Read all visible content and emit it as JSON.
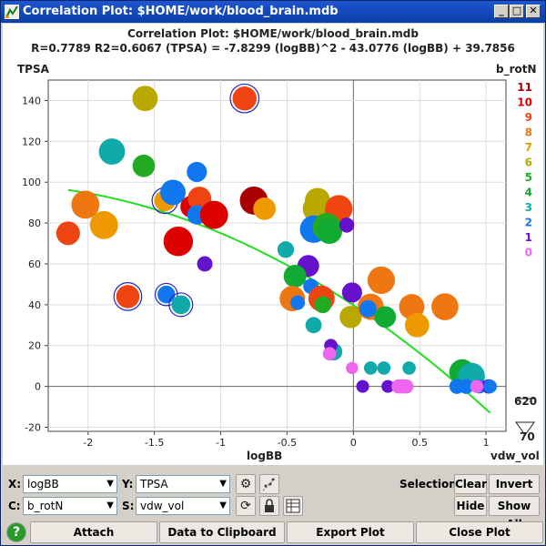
{
  "window": {
    "title": "Correlation Plot: $HOME/work/blood_brain.mdb",
    "controls": {
      "minimize": "_",
      "maximize": "□",
      "close": "✕"
    }
  },
  "plot": {
    "title": "Correlation Plot: $HOME/work/blood_brain.mdb",
    "subtitle": "R=0.7789 R2=0.6067    (TPSA) = -7.8299 (logBB)^2 - 43.0776 (logBB) + 39.7856",
    "ylabel": "TPSA",
    "xlabel": "logBB",
    "color_legend_title": "b_rotN",
    "size_legend_title": "vdw_vol",
    "size_legend_max": "620",
    "size_legend_min": "70"
  },
  "chart_data": {
    "type": "scatter",
    "title": "Correlation Plot: $HOME/work/blood_brain.mdb",
    "xlabel": "logBB",
    "ylabel": "TPSA",
    "xlim": [
      -2.3,
      1.15
    ],
    "ylim": [
      -22,
      150
    ],
    "xticks": [
      -2,
      -1.5,
      -1,
      -0.5,
      0,
      0.5,
      1
    ],
    "yticks": [
      -20,
      0,
      20,
      40,
      60,
      80,
      100,
      120,
      140
    ],
    "grid": true,
    "fit": {
      "equation": "(TPSA) = -7.8299 (logBB)^2 - 43.0776 (logBB) + 39.7856",
      "a": -7.8299,
      "b": -43.0776,
      "c": 39.7856,
      "x_range": [
        -2.15,
        1.03
      ],
      "color": "#22dd22"
    },
    "legend_colors": {
      "title": "b_rotN",
      "position": "right",
      "entries": [
        {
          "label": "11",
          "color": "#a80000"
        },
        {
          "label": "10",
          "color": "#dd0000"
        },
        {
          "label": "9",
          "color": "#ee4411"
        },
        {
          "label": "8",
          "color": "#ee7711"
        },
        {
          "label": "7",
          "color": "#ee9900"
        },
        {
          "label": "6",
          "color": "#b8a800"
        },
        {
          "label": "5",
          "color": "#22aa22"
        },
        {
          "label": "4",
          "color": "#11aa33"
        },
        {
          "label": "3",
          "color": "#11aaaa"
        },
        {
          "label": "2",
          "color": "#1177ee"
        },
        {
          "label": "1",
          "color": "#6611cc"
        },
        {
          "label": "0",
          "color": "#ee66ee"
        }
      ]
    },
    "size_legend": {
      "title": "vdw_vol",
      "max": 620,
      "min": 70
    },
    "points": [
      {
        "x": -1.57,
        "y": 141,
        "c": 6,
        "s": 480
      },
      {
        "x": -0.82,
        "y": 141,
        "c": 9,
        "s": 420,
        "sel": true
      },
      {
        "x": -1.82,
        "y": 115,
        "c": 3,
        "s": 520
      },
      {
        "x": -1.58,
        "y": 108,
        "c": 5,
        "s": 350
      },
      {
        "x": -1.18,
        "y": 105,
        "c": 2,
        "s": 260
      },
      {
        "x": -2.02,
        "y": 89,
        "c": 8,
        "s": 620
      },
      {
        "x": -2.15,
        "y": 75,
        "c": 9,
        "s": 400
      },
      {
        "x": -1.88,
        "y": 79,
        "c": 7,
        "s": 620
      },
      {
        "x": -1.42,
        "y": 91,
        "c": 7,
        "s": 300,
        "sel": true
      },
      {
        "x": -1.36,
        "y": 95,
        "c": 2,
        "s": 480
      },
      {
        "x": -1.22,
        "y": 88,
        "c": 10,
        "s": 340
      },
      {
        "x": -1.16,
        "y": 92,
        "c": 9,
        "s": 400
      },
      {
        "x": -1.18,
        "y": 84,
        "c": 2,
        "s": 230
      },
      {
        "x": -1.05,
        "y": 84,
        "c": 10,
        "s": 620
      },
      {
        "x": -1.32,
        "y": 71,
        "c": 10,
        "s": 700
      },
      {
        "x": -0.75,
        "y": 91,
        "c": 11,
        "s": 620
      },
      {
        "x": -0.67,
        "y": 87,
        "c": 7,
        "s": 350
      },
      {
        "x": -1.12,
        "y": 60,
        "c": 1,
        "s": 120
      },
      {
        "x": -1.7,
        "y": 44,
        "c": 9,
        "s": 380,
        "sel": true
      },
      {
        "x": -1.41,
        "y": 45,
        "c": 2,
        "s": 180,
        "sel": true
      },
      {
        "x": -1.3,
        "y": 40,
        "c": 3,
        "s": 220,
        "sel": true
      },
      {
        "x": -0.27,
        "y": 91,
        "c": 6,
        "s": 480
      },
      {
        "x": -0.28,
        "y": 87,
        "c": 6,
        "s": 560
      },
      {
        "x": -0.11,
        "y": 87,
        "c": 9,
        "s": 580
      },
      {
        "x": -0.3,
        "y": 77,
        "c": 2,
        "s": 580
      },
      {
        "x": -0.2,
        "y": 78,
        "c": 5,
        "s": 620
      },
      {
        "x": -0.18,
        "y": 76,
        "c": 4,
        "s": 480
      },
      {
        "x": -0.05,
        "y": 79,
        "c": 1,
        "s": 110
      },
      {
        "x": -0.51,
        "y": 67,
        "c": 3,
        "s": 150
      },
      {
        "x": -0.34,
        "y": 59,
        "c": 1,
        "s": 320
      },
      {
        "x": -0.44,
        "y": 54,
        "c": 4,
        "s": 360
      },
      {
        "x": -0.32,
        "y": 49,
        "c": 2,
        "s": 120
      },
      {
        "x": -0.46,
        "y": 43,
        "c": 8,
        "s": 480
      },
      {
        "x": -0.42,
        "y": 41,
        "c": 2,
        "s": 100
      },
      {
        "x": -0.24,
        "y": 43,
        "c": 9,
        "s": 520
      },
      {
        "x": -0.23,
        "y": 40,
        "c": 5,
        "s": 160
      },
      {
        "x": -0.3,
        "y": 30,
        "c": 3,
        "s": 140
      },
      {
        "x": -0.01,
        "y": 46,
        "c": 1,
        "s": 260
      },
      {
        "x": -0.02,
        "y": 34,
        "c": 6,
        "s": 340
      },
      {
        "x": 0.21,
        "y": 52,
        "c": 8,
        "s": 580
      },
      {
        "x": 0.13,
        "y": 39,
        "c": 8,
        "s": 520
      },
      {
        "x": 0.11,
        "y": 38,
        "c": 2,
        "s": 170
      },
      {
        "x": 0.24,
        "y": 34,
        "c": 4,
        "s": 310
      },
      {
        "x": 0.44,
        "y": 39,
        "c": 8,
        "s": 480
      },
      {
        "x": 0.48,
        "y": 30,
        "c": 7,
        "s": 430
      },
      {
        "x": 0.69,
        "y": 39,
        "c": 8,
        "s": 560
      },
      {
        "x": -0.15,
        "y": 17,
        "c": 3,
        "s": 180
      },
      {
        "x": -0.17,
        "y": 20,
        "c": 1,
        "s": 75
      },
      {
        "x": -0.18,
        "y": 16,
        "c": 0,
        "s": 75
      },
      {
        "x": -0.01,
        "y": 9,
        "c": 0,
        "s": 55
      },
      {
        "x": 0.13,
        "y": 9,
        "c": 3,
        "s": 75
      },
      {
        "x": 0.23,
        "y": 9,
        "c": 3,
        "s": 75
      },
      {
        "x": 0.42,
        "y": 9,
        "c": 3,
        "s": 75
      },
      {
        "x": 0.07,
        "y": 0,
        "c": 1,
        "s": 65
      },
      {
        "x": 0.26,
        "y": 0,
        "c": 1,
        "s": 65
      },
      {
        "x": 0.34,
        "y": 0,
        "c": 0,
        "s": 90
      },
      {
        "x": 0.36,
        "y": 0,
        "c": 0,
        "s": 90
      },
      {
        "x": 0.38,
        "y": 0,
        "c": 0,
        "s": 90
      },
      {
        "x": 0.4,
        "y": 0,
        "c": 0,
        "s": 90
      },
      {
        "x": 0.82,
        "y": 7,
        "c": 4,
        "s": 500
      },
      {
        "x": 0.89,
        "y": 5,
        "c": 3,
        "s": 560
      },
      {
        "x": 0.78,
        "y": 0,
        "c": 2,
        "s": 110
      },
      {
        "x": 0.85,
        "y": 0,
        "c": 2,
        "s": 110
      },
      {
        "x": 0.95,
        "y": 0,
        "c": 2,
        "s": 90
      },
      {
        "x": 1.02,
        "y": 0,
        "c": 1,
        "s": 95
      },
      {
        "x": 1.03,
        "y": 0,
        "c": 2,
        "s": 80
      },
      {
        "x": 0.93,
        "y": 0,
        "c": 0,
        "s": 70
      }
    ]
  },
  "controls": {
    "x_label": "X:",
    "x_value": "logBB",
    "y_label": "Y:",
    "y_value": "TPSA",
    "c_label": "C:",
    "c_value": "b_rotN",
    "s_label": "S:",
    "s_value": "vdw_vol",
    "selection_label": "Selection:",
    "clear": "Clear",
    "invert": "Invert",
    "hide": "Hide",
    "show_all": "Show All"
  },
  "bottom_buttons": {
    "attach": "Attach",
    "clipboard": "Data to Clipboard",
    "export": "Export Plot",
    "close": "Close Plot"
  }
}
